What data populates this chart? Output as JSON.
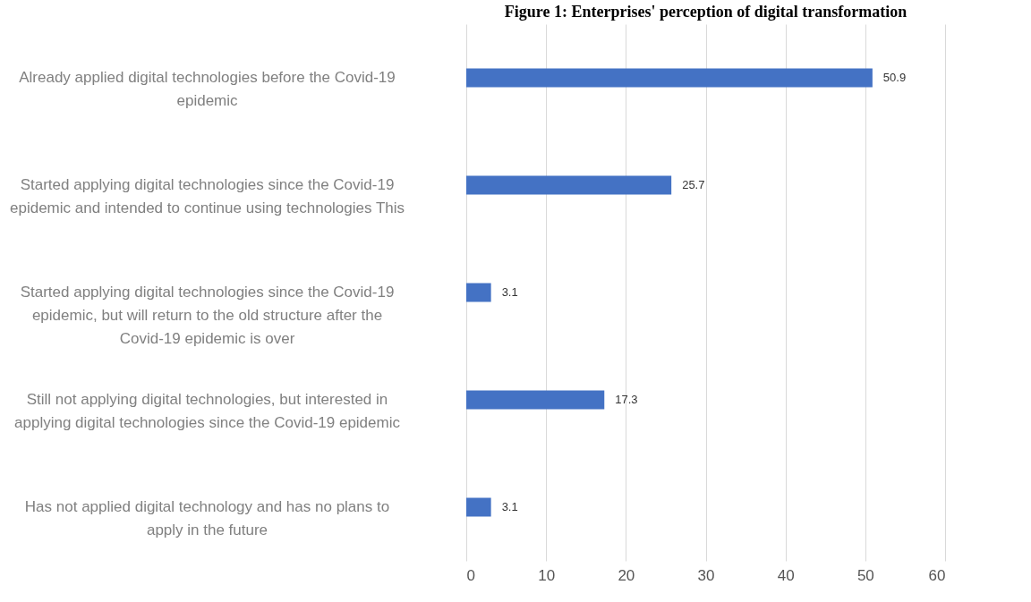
{
  "chart_data": {
    "type": "bar",
    "orientation": "horizontal",
    "title": "Figure 1: Enterprises' perception of digital transformation",
    "categories": [
      "Already applied digital technologies before the Covid-19 epidemic",
      "Started applying digital technologies since the Covid-19 epidemic and intended to continue using technologies This",
      "Started applying digital technologies since the Covid-19 epidemic, but will return to the old structure after the Covid-19 epidemic is over",
      "Still not applying digital technologies, but interested in applying digital technologies since the Covid-19 epidemic",
      "Has not applied digital technology and has no plans to apply in the future"
    ],
    "values": [
      50.9,
      25.7,
      3.1,
      17.3,
      3.1
    ],
    "color": "#4472c4",
    "xlim": [
      0,
      60
    ],
    "xticks": [
      0,
      10,
      20,
      30,
      40,
      50,
      60
    ],
    "grid": "x",
    "data_labels": true
  }
}
